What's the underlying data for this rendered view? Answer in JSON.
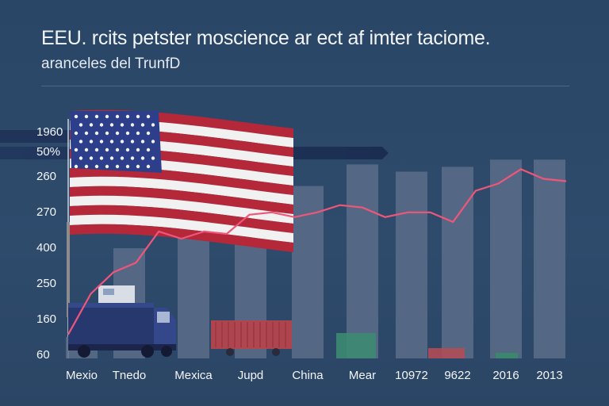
{
  "header": {
    "title": "EEU. rcits petster moscience ar ect af imter taciome.",
    "subtitle": "aranceles del TrunfD"
  },
  "colors": {
    "background": "#2c4868",
    "bar": "#5d6f8b",
    "line": "#f0557a",
    "banner": "#1d3157",
    "flag_red": "#b5283a",
    "flag_blue": "#2d3f8a"
  },
  "icons": [
    "us-flag-icon",
    "truck-icon",
    "shipping-container-icon"
  ],
  "chart_data": {
    "type": "bar",
    "title": "EEU. rcits petster moscience ar ect af imter taciome.",
    "subtitle": "aranceles del TrunfD",
    "ytick_labels": [
      "1960",
      "50%",
      "260",
      "270",
      "400",
      "250",
      "160",
      "60"
    ],
    "categories": [
      "Mexio",
      "Tnedo",
      "Mexica",
      "Jupd",
      "China",
      "Mear",
      "10972",
      "9622",
      "2016",
      "2013"
    ],
    "bar_levels": [
      0.09,
      0.46,
      0.61,
      0.67,
      0.72,
      0.81,
      0.78,
      0.8,
      0.83,
      0.83
    ],
    "line_levels": [
      0.1,
      0.27,
      0.36,
      0.4,
      0.53,
      0.5,
      0.53,
      0.52,
      0.6,
      0.61,
      0.59,
      0.61,
      0.64,
      0.63,
      0.59,
      0.61,
      0.61,
      0.57,
      0.7,
      0.73,
      0.79,
      0.75,
      0.74
    ],
    "grid": false,
    "legend": "none"
  }
}
